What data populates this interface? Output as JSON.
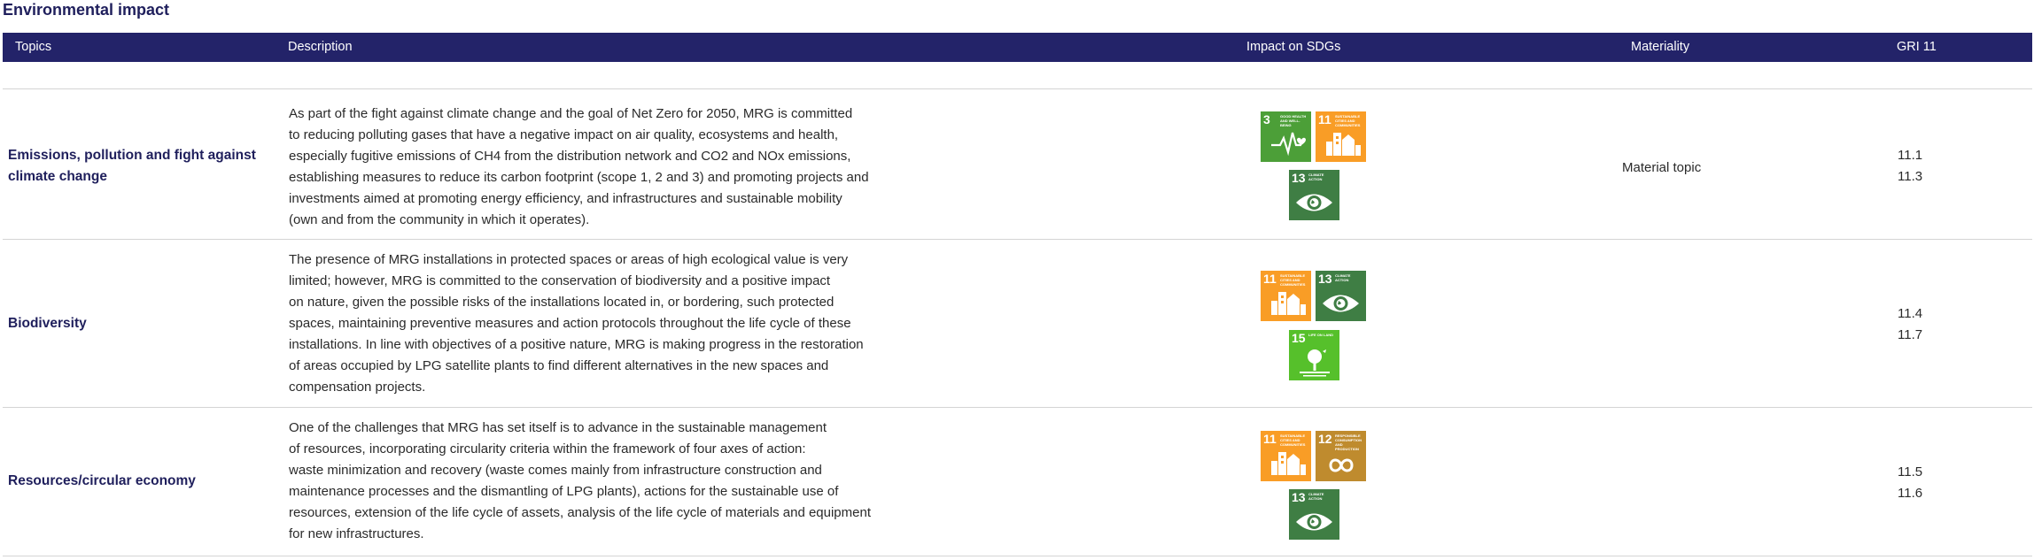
{
  "page_title": "Environmental impact",
  "table": {
    "headers": {
      "topics": "Topics",
      "description": "Description",
      "impact_on_sdgs": "Impact on SDGs",
      "materiality": "Materiality",
      "gri": "GRI 11"
    },
    "rows": [
      {
        "topic_lines": [
          "Emissions, pollution and fight against",
          "climate change"
        ],
        "description_lines": [
          "As part of the fight against climate change and the goal of Net Zero for 2050, MRG is committed",
          "to reducing polluting gases that have a negative impact on air quality, ecosystems and health,",
          "especially fugitive emissions of CH4 from the distribution network and CO2 and NOx emissions,",
          "establishing measures to reduce its carbon footprint (scope 1, 2 and 3) and promoting projects and",
          "investments aimed at promoting energy efficiency, and infrastructures and sustainable mobility",
          "(own and from the community in which it operates)."
        ],
        "sdgs": [
          {
            "number": "3",
            "label": "GOOD HEALTH AND WELL-BEING",
            "color": "#4c9f38",
            "icon": "heartbeat-icon"
          },
          {
            "number": "11",
            "label": "SUSTAINABLE CITIES AND COMMUNITIES",
            "color": "#f99d26",
            "icon": "city-icon"
          },
          {
            "number": "13",
            "label": "CLIMATE ACTION",
            "color": "#3f7e44",
            "icon": "eye-globe-icon"
          }
        ],
        "materiality": "Material topic",
        "gri": [
          "11.1",
          "11.3"
        ]
      },
      {
        "topic_lines": [
          "Biodiversity"
        ],
        "description_lines": [
          "The presence of MRG installations in protected spaces or areas of high ecological value is very",
          "limited; however, MRG is committed to the conservation of biodiversity and a positive impact",
          "on nature, given the possible risks of the installations located in, or bordering, such protected",
          "spaces, maintaining preventive measures and action protocols throughout the life cycle of these",
          "installations. In line with objectives of a positive nature, MRG is making progress in the restoration",
          "of areas occupied by LPG satellite plants to find different alternatives in the new spaces and",
          "compensation projects."
        ],
        "sdgs": [
          {
            "number": "11",
            "label": "SUSTAINABLE CITIES AND COMMUNITIES",
            "color": "#f99d26",
            "icon": "city-icon"
          },
          {
            "number": "13",
            "label": "CLIMATE ACTION",
            "color": "#3f7e44",
            "icon": "eye-globe-icon"
          },
          {
            "number": "15",
            "label": "LIFE ON LAND",
            "color": "#56c02b",
            "icon": "tree-icon"
          }
        ],
        "materiality": "",
        "gri": [
          "11.4",
          "11.7"
        ]
      },
      {
        "topic_lines": [
          "Resources/circular economy"
        ],
        "description_lines": [
          "One of the challenges that MRG has set itself is to advance in the sustainable management",
          "of resources, incorporating circularity criteria within the framework of four axes of action:",
          "waste minimization and recovery (waste comes mainly from infrastructure construction and",
          "maintenance processes and the dismantling of LPG plants), actions for the sustainable use of",
          "resources, extension of the life cycle of assets, analysis of the life cycle of materials and equipment",
          "for new infrastructures."
        ],
        "sdgs": [
          {
            "number": "11",
            "label": "SUSTAINABLE CITIES AND COMMUNITIES",
            "color": "#f99d26",
            "icon": "city-icon"
          },
          {
            "number": "12",
            "label": "RESPONSIBLE CONSUMPTION AND PRODUCTION",
            "color": "#bf8b2e",
            "icon": "infinity-icon"
          },
          {
            "number": "13",
            "label": "CLIMATE ACTION",
            "color": "#3f7e44",
            "icon": "eye-globe-icon"
          }
        ],
        "materiality": "",
        "gri": [
          "11.5",
          "11.6"
        ]
      }
    ]
  }
}
